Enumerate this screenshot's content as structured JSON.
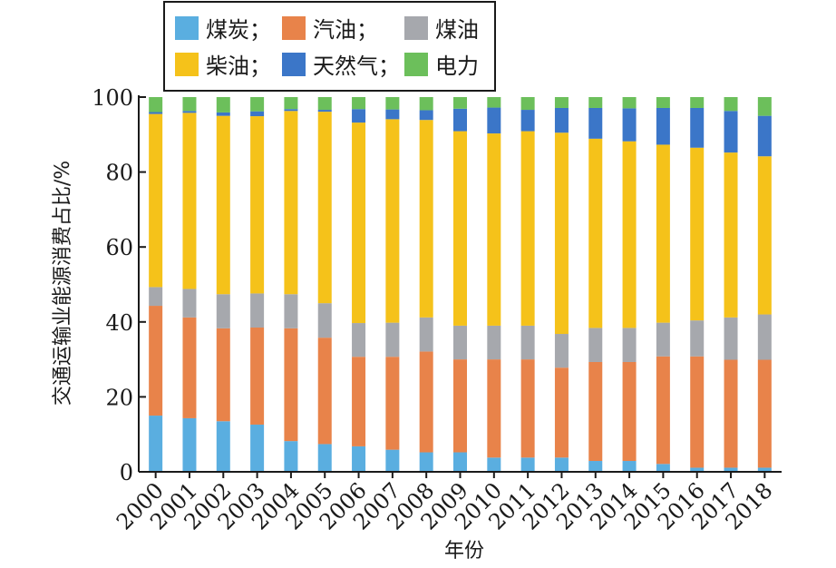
{
  "chart_data": {
    "type": "bar",
    "stacked": true,
    "categories": [
      "2000",
      "2001",
      "2002",
      "2003",
      "2004",
      "2005",
      "2006",
      "2007",
      "2008",
      "2009",
      "2010",
      "2011",
      "2012",
      "2013",
      "2014",
      "2015",
      "2016",
      "2017",
      "2018"
    ],
    "series": [
      {
        "name": "煤炭；",
        "color": "#5aaee0",
        "values": [
          15,
          14.3,
          13.5,
          12.6,
          8.2,
          7.4,
          6.8,
          5.9,
          5.2,
          5.2,
          3.8,
          3.8,
          3.8,
          2.9,
          2.9,
          2.1,
          1.1,
          1.1,
          1.1
        ]
      },
      {
        "name": "汽油；",
        "color": "#e8834a",
        "values": [
          29.3,
          26.9,
          24.8,
          25.9,
          30.1,
          28.4,
          23.9,
          24.8,
          26.9,
          24.8,
          26.2,
          26.2,
          24,
          26.4,
          26.4,
          28.7,
          29.7,
          28.8,
          28.8
        ]
      },
      {
        "name": "煤油",
        "color": "#a6a8ad",
        "values": [
          5,
          7.6,
          9.1,
          9.1,
          9.1,
          9.2,
          9,
          9.1,
          9.1,
          9,
          9,
          9,
          9,
          9.1,
          9.1,
          9,
          9.6,
          11.3,
          12.1
        ]
      },
      {
        "name": "柴油；",
        "color": "#f5c21a",
        "values": [
          46.2,
          47,
          47.6,
          47.3,
          48.9,
          51.1,
          53.5,
          54.3,
          52.7,
          51.9,
          51.3,
          51.9,
          53.7,
          50.5,
          49.8,
          47.5,
          46.1,
          44,
          42.2
        ]
      },
      {
        "name": "天然气；",
        "color": "#3b76c8",
        "values": [
          0.5,
          0.5,
          0.9,
          1.3,
          0.5,
          0.5,
          3.6,
          2.6,
          2.6,
          6,
          6.9,
          5.7,
          6.6,
          8.2,
          8.8,
          9.8,
          10.6,
          11.1,
          10.8
        ]
      },
      {
        "name": "电力",
        "color": "#6cbf5b",
        "values": [
          4,
          3.7,
          4.1,
          3.8,
          3.2,
          3.4,
          3.2,
          3.3,
          3.5,
          3.1,
          2.8,
          3.4,
          2.9,
          2.9,
          3,
          2.9,
          2.9,
          3.7,
          5
        ]
      }
    ],
    "title": "",
    "xlabel": "年份",
    "ylabel": "交通运输业能源消费占比/%",
    "ylim": [
      0,
      100
    ],
    "yticks": [
      "0",
      "20",
      "40",
      "60",
      "80",
      "100"
    ],
    "grid": false,
    "legend_position": "top"
  }
}
